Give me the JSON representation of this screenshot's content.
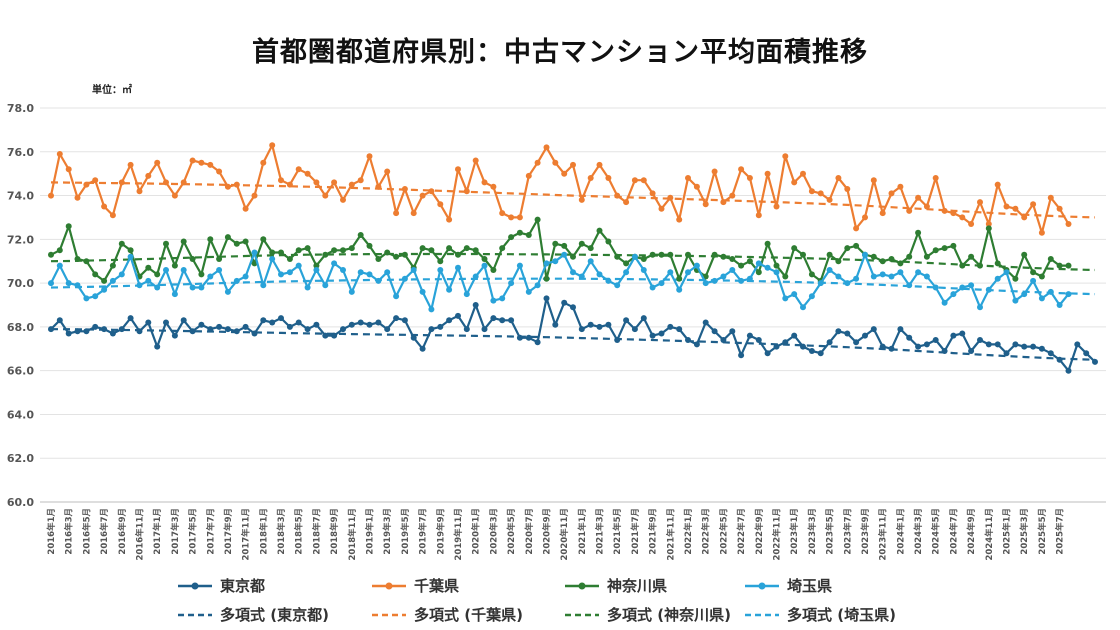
{
  "chart_data": {
    "type": "line",
    "title": "首都圏都道府県別：中古マンション平均面積推移",
    "unit_label": "単位：㎡",
    "xlabel": "",
    "ylabel": "",
    "ylim": [
      60,
      78
    ],
    "yticks": [
      "60.0",
      "62.0",
      "64.0",
      "66.0",
      "68.0",
      "70.0",
      "72.0",
      "74.0",
      "76.0",
      "78.0"
    ],
    "grid": true,
    "legend_position": "bottom",
    "x_start": "2016年1月",
    "x_tick_labels": [
      "2016年1月",
      "2016年3月",
      "2016年5月",
      "2016年7月",
      "2016年9月",
      "2016年11月",
      "2017年1月",
      "2017年3月",
      "2017年5月",
      "2017年7月",
      "2017年9月",
      "2017年11月",
      "2018年1月",
      "2018年3月",
      "2018年5月",
      "2018年7月",
      "2018年9月",
      "2018年11月",
      "2019年1月",
      "2019年3月",
      "2019年5月",
      "2019年7月",
      "2019年9月",
      "2019年11月",
      "2020年1月",
      "2020年3月",
      "2020年5月",
      "2020年7月",
      "2020年9月",
      "2020年11月",
      "2021年1月",
      "2021年3月",
      "2021年5月",
      "2021年7月",
      "2021年9月",
      "2021年11月",
      "2022年1月",
      "2022年3月",
      "2022年5月",
      "2022年7月",
      "2022年9月",
      "2022年11月",
      "2023年1月",
      "2023年3月",
      "2023年5月",
      "2023年7月",
      "2023年9月",
      "2023年11月",
      "2024年1月",
      "2024年3月",
      "2024年5月",
      "2024年7月",
      "2024年9月",
      "2024年11月",
      "2025年1月",
      "2025年3月",
      "2025年5月",
      "2025年7月"
    ],
    "series": [
      {
        "name": "東京都",
        "color": "#1f5f8b",
        "values": [
          67.9,
          68.3,
          67.7,
          67.8,
          67.8,
          68.0,
          67.9,
          67.7,
          67.9,
          68.4,
          67.8,
          68.2,
          67.1,
          68.2,
          67.6,
          68.3,
          67.8,
          68.1,
          67.9,
          68.0,
          67.9,
          67.8,
          68.0,
          67.7,
          68.3,
          68.2,
          68.4,
          68.0,
          68.2,
          67.9,
          68.1,
          67.6,
          67.6,
          67.9,
          68.1,
          68.2,
          68.1,
          68.2,
          67.9,
          68.4,
          68.3,
          67.5,
          67.0,
          67.9,
          68.0,
          68.3,
          68.5,
          67.9,
          69.0,
          67.9,
          68.4,
          68.3,
          68.3,
          67.5,
          67.5,
          67.3,
          69.3,
          68.1,
          69.1,
          68.9,
          67.9,
          68.1,
          68.0,
          68.1,
          67.4,
          68.3,
          67.9,
          68.4,
          67.6,
          67.7,
          68.0,
          67.9,
          67.4,
          67.2,
          68.2,
          67.8,
          67.4,
          67.8,
          66.7,
          67.6,
          67.4,
          66.8,
          67.1,
          67.3,
          67.6,
          67.1,
          66.9,
          66.8,
          67.3,
          67.8,
          67.7,
          67.3,
          67.6,
          67.9,
          67.1,
          67.0,
          67.9,
          67.5,
          67.1,
          67.2,
          67.4,
          66.9,
          67.6,
          67.7,
          66.9,
          67.4,
          67.2,
          67.2,
          66.8,
          67.2,
          67.1,
          67.1,
          67.0,
          66.8,
          66.5,
          66.0,
          67.2,
          66.8,
          66.4
        ],
        "trend": [
          67.9,
          67.7,
          67.5,
          67.1,
          66.5
        ]
      },
      {
        "name": "千葉県",
        "color": "#ed7d31",
        "values": [
          74.0,
          75.9,
          75.2,
          73.9,
          74.5,
          74.7,
          73.5,
          73.1,
          74.6,
          75.4,
          74.2,
          74.9,
          75.5,
          74.6,
          74.0,
          74.6,
          75.6,
          75.5,
          75.4,
          75.1,
          74.4,
          74.5,
          73.4,
          74.0,
          75.5,
          76.3,
          74.7,
          74.5,
          75.2,
          75.0,
          74.6,
          74.0,
          74.6,
          73.8,
          74.5,
          74.7,
          75.8,
          74.4,
          75.1,
          73.2,
          74.3,
          73.2,
          74.0,
          74.2,
          73.6,
          72.9,
          75.2,
          74.2,
          75.6,
          74.6,
          74.4,
          73.2,
          73.0,
          73.0,
          74.9,
          75.5,
          76.2,
          75.5,
          75.0,
          75.4,
          73.8,
          74.8,
          75.4,
          74.8,
          74.0,
          73.7,
          74.7,
          74.7,
          74.1,
          73.4,
          73.9,
          72.9,
          74.8,
          74.4,
          73.6,
          75.1,
          73.7,
          74.0,
          75.2,
          74.8,
          73.1,
          75.0,
          73.5,
          75.8,
          74.6,
          75.0,
          74.2,
          74.1,
          73.8,
          74.8,
          74.3,
          72.5,
          73.0,
          74.7,
          73.2,
          74.1,
          74.4,
          73.3,
          73.9,
          73.5,
          74.8,
          73.3,
          73.2,
          73.0,
          72.7,
          73.7,
          72.7,
          74.5,
          73.5,
          73.4,
          73.0,
          73.6,
          72.3,
          73.9,
          73.4,
          72.7
        ],
        "trend": [
          74.6,
          74.4,
          74.0,
          73.6,
          73.0
        ]
      },
      {
        "name": "神奈川県",
        "color": "#2e7d32",
        "values": [
          71.3,
          71.5,
          72.6,
          71.1,
          71.0,
          70.4,
          70.1,
          70.8,
          71.8,
          71.5,
          70.3,
          70.7,
          70.4,
          71.8,
          70.8,
          71.9,
          71.1,
          70.4,
          72.0,
          71.1,
          72.1,
          71.8,
          71.9,
          70.9,
          72.0,
          71.4,
          71.4,
          71.1,
          71.5,
          71.6,
          70.8,
          71.3,
          71.5,
          71.5,
          71.6,
          72.2,
          71.7,
          71.1,
          71.4,
          71.2,
          71.3,
          70.7,
          71.6,
          71.5,
          71.0,
          71.6,
          71.3,
          71.6,
          71.5,
          71.1,
          70.6,
          71.6,
          72.1,
          72.3,
          72.2,
          72.9,
          70.2,
          71.8,
          71.7,
          71.2,
          71.8,
          71.6,
          72.4,
          71.9,
          71.2,
          70.9,
          71.2,
          71.1,
          71.3,
          71.3,
          71.3,
          70.2,
          71.3,
          70.6,
          70.3,
          71.3,
          71.2,
          71.1,
          70.8,
          71.0,
          70.5,
          71.8,
          70.8,
          70.3,
          71.6,
          71.3,
          70.4,
          70.1,
          71.3,
          71.0,
          71.6,
          71.7,
          71.3,
          71.2,
          71.0,
          71.1,
          70.9,
          71.2,
          72.3,
          71.2,
          71.5,
          71.6,
          71.7,
          70.8,
          71.2,
          70.8,
          72.5,
          70.9,
          70.6,
          70.2,
          71.3,
          70.5,
          70.3,
          71.1,
          70.8,
          70.8
        ],
        "trend": [
          71.0,
          71.3,
          71.3,
          71.1,
          70.6
        ]
      },
      {
        "name": "埼玉県",
        "color": "#29a3d9",
        "values": [
          70.0,
          70.8,
          70.0,
          69.9,
          69.3,
          69.4,
          69.7,
          70.1,
          70.4,
          71.2,
          69.9,
          70.1,
          69.8,
          70.6,
          69.5,
          70.6,
          69.8,
          69.8,
          70.3,
          70.6,
          69.6,
          70.1,
          70.3,
          71.4,
          69.9,
          71.1,
          70.4,
          70.5,
          70.8,
          69.8,
          70.6,
          69.9,
          70.9,
          70.6,
          69.6,
          70.5,
          70.4,
          70.1,
          70.5,
          69.4,
          70.2,
          70.6,
          69.6,
          68.8,
          70.6,
          69.7,
          70.7,
          69.5,
          70.3,
          70.8,
          69.2,
          69.3,
          70.0,
          70.8,
          69.6,
          69.9,
          70.9,
          71.0,
          71.3,
          70.5,
          70.3,
          71.0,
          70.4,
          70.1,
          69.9,
          70.5,
          71.2,
          70.6,
          69.8,
          70.0,
          70.5,
          69.7,
          70.5,
          70.8,
          70.0,
          70.1,
          70.3,
          70.6,
          70.1,
          70.2,
          70.9,
          70.7,
          70.5,
          69.3,
          69.5,
          68.9,
          69.4,
          70.0,
          70.6,
          70.3,
          70.0,
          70.2,
          71.3,
          70.3,
          70.4,
          70.3,
          70.5,
          69.9,
          70.5,
          70.3,
          69.8,
          69.1,
          69.5,
          69.8,
          69.9,
          68.9,
          69.7,
          70.2,
          70.5,
          69.2,
          69.5,
          70.1,
          69.3,
          69.6,
          69.0,
          69.5
        ],
        "trend": [
          69.8,
          70.1,
          70.2,
          70.0,
          69.5
        ]
      }
    ],
    "legend_labels": [
      "東京都",
      "千葉県",
      "神奈川県",
      "埼玉県",
      "多項式 (東京都)",
      "多項式 (千葉県)",
      "多項式 (神奈川県)",
      "多項式 (埼玉県)"
    ]
  }
}
